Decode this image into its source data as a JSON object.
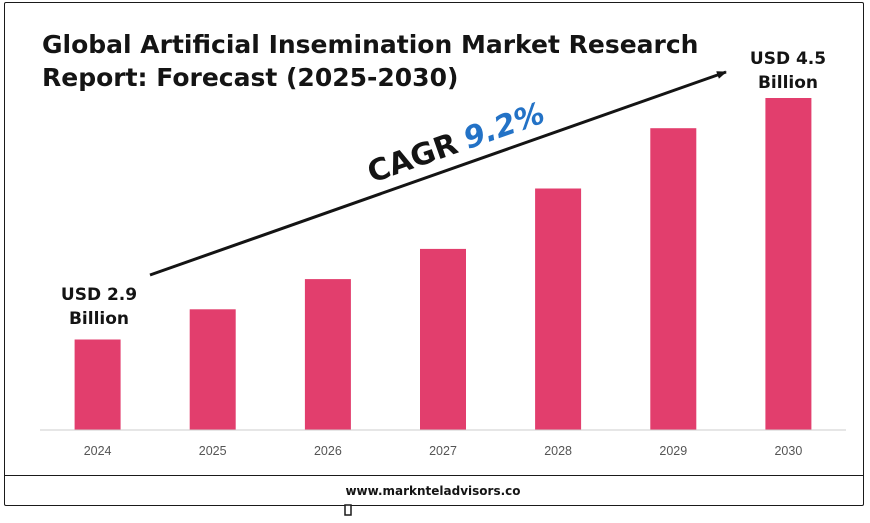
{
  "title_lines": [
    "Global Artificial Insemination Market Research",
    "Report: Forecast (2025-2030)"
  ],
  "cagr": {
    "label": "CAGR",
    "value": "9.2%"
  },
  "value_labels": {
    "start": [
      "USD 2.9",
      "Billion"
    ],
    "end": [
      "USD 4.5",
      "Billion"
    ]
  },
  "website": "www.marknteladvisors.co",
  "colors": {
    "bar": "#e23e6d",
    "cagr_value": "#2372c6",
    "text": "#141414",
    "axis": "#cccccc"
  },
  "chart_data": {
    "type": "bar",
    "title": "Global Artificial Insemination Market Research Report: Forecast (2025-2030)",
    "categories": [
      "2024",
      "2025",
      "2026",
      "2027",
      "2028",
      "2029",
      "2030"
    ],
    "series": [
      {
        "values": [
          2.9,
          3.1,
          3.3,
          3.5,
          3.9,
          4.3,
          4.5
        ]
      }
    ],
    "unit": "USD Billion",
    "ylim": [
      2.3,
      4.5
    ],
    "grid": false,
    "legend": "none"
  }
}
